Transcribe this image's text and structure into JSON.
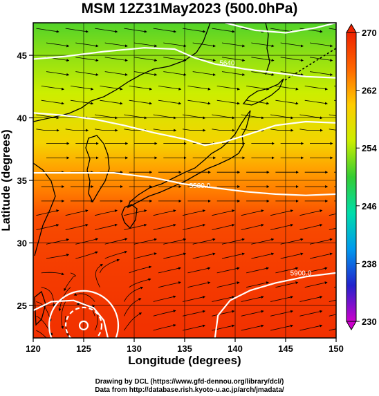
{
  "title": "MSM 12Z31May2023 (500.0hPa)",
  "chart_data": {
    "type": "heatmap",
    "variable_description": "temperature shading with streamlines and geopotential height contours",
    "xlabel": "Longitude (degrees)",
    "ylabel": "Latitude  (degrees)",
    "xlim": [
      120,
      150
    ],
    "ylim": [
      22.4,
      47.6
    ],
    "x_ticks": [
      "120",
      "125",
      "130",
      "135",
      "140",
      "145",
      "150"
    ],
    "x_tick_values": [
      120,
      125,
      130,
      135,
      140,
      145,
      150
    ],
    "y_ticks": [
      "25",
      "30",
      "35",
      "40",
      "45"
    ],
    "y_tick_values": [
      25,
      30,
      35,
      40,
      45
    ],
    "colorbar": {
      "min": 230,
      "max": 270,
      "tick_labels": [
        "230",
        "238",
        "246",
        "254",
        "262",
        "270"
      ],
      "tick_values": [
        230,
        238,
        246,
        254,
        262,
        270
      ],
      "colors": [
        "#cc00cc",
        "#2222cc",
        "#0099ee",
        "#00ddaa",
        "#33cc33",
        "#ccee00",
        "#ffcc00",
        "#ff6600",
        "#ee2200"
      ],
      "extend": "both"
    },
    "temperature_field_by_latitude": [
      {
        "lat": 47.6,
        "value": 251
      },
      {
        "lat": 45,
        "value": 253
      },
      {
        "lat": 42,
        "value": 255
      },
      {
        "lat": 40,
        "value": 257
      },
      {
        "lat": 38,
        "value": 259
      },
      {
        "lat": 36,
        "value": 262
      },
      {
        "lat": 34,
        "value": 264
      },
      {
        "lat": 32,
        "value": 267
      },
      {
        "lat": 28,
        "value": 268
      },
      {
        "lat": 22.4,
        "value": 269
      }
    ],
    "contour_labels": [
      {
        "text": "5640",
        "lon": 139.2,
        "lat": 44.2
      },
      {
        "text": "5580.0",
        "lon": 136.5,
        "lat": 34.4
      },
      {
        "text": "5900.0",
        "lon": 146.5,
        "lat": 27.4
      }
    ],
    "contours": [
      {
        "name": "upper-contour",
        "points": [
          [
            120,
            44.7
          ],
          [
            123,
            44.9
          ],
          [
            127,
            45.3
          ],
          [
            131,
            45.6
          ],
          [
            134,
            45.5
          ],
          [
            136,
            44.8
          ],
          [
            138,
            44.3
          ],
          [
            141,
            43.9
          ],
          [
            144,
            43.6
          ],
          [
            147,
            43.3
          ],
          [
            150,
            43.2
          ]
        ]
      },
      {
        "name": "north-contour",
        "points": [
          [
            139,
            47.6
          ],
          [
            142,
            47.0
          ],
          [
            145,
            46.8
          ],
          [
            148,
            47.2
          ],
          [
            150,
            47.6
          ]
        ]
      },
      {
        "name": "mid-contour",
        "points": [
          [
            120,
            40.4
          ],
          [
            123,
            40.2
          ],
          [
            126,
            39.9
          ],
          [
            129,
            39.4
          ],
          [
            132,
            38.8
          ],
          [
            135,
            38.3
          ],
          [
            137,
            37.8
          ],
          [
            139,
            38.1
          ],
          [
            141,
            38.6
          ],
          [
            144,
            39.4
          ],
          [
            147,
            39.7
          ],
          [
            150,
            39.6
          ]
        ]
      },
      {
        "name": "south-contour",
        "points": [
          [
            120,
            35.6
          ],
          [
            124,
            35.6
          ],
          [
            128,
            35.6
          ],
          [
            132,
            35.2
          ],
          [
            135,
            34.7
          ],
          [
            138,
            34.4
          ],
          [
            141,
            34.1
          ],
          [
            144,
            33.9
          ],
          [
            147,
            33.8
          ],
          [
            150,
            33.9
          ]
        ]
      },
      {
        "name": "high-contour-east",
        "points": [
          [
            138,
            22.4
          ],
          [
            138.3,
            24.2
          ],
          [
            139.5,
            25.4
          ],
          [
            141.5,
            26.2
          ],
          [
            144,
            26.8
          ],
          [
            147,
            27.3
          ],
          [
            150,
            27.6
          ]
        ]
      },
      {
        "name": "high-contour-west",
        "points": [
          [
            120,
            24.6
          ],
          [
            121.8,
            25.3
          ],
          [
            124,
            25.4
          ],
          [
            126,
            24.8
          ],
          [
            127,
            23.8
          ],
          [
            127.4,
            22.4
          ]
        ]
      }
    ],
    "vortex_center": {
      "lon": 125.0,
      "lat": 23.4
    }
  },
  "footer": {
    "line1": "Drawing by DCL (https://www.gfd-dennou.org/library/dcl/)",
    "line2": "Data from http://database.rish.kyoto-u.ac.jp/arch/jmadata/"
  }
}
